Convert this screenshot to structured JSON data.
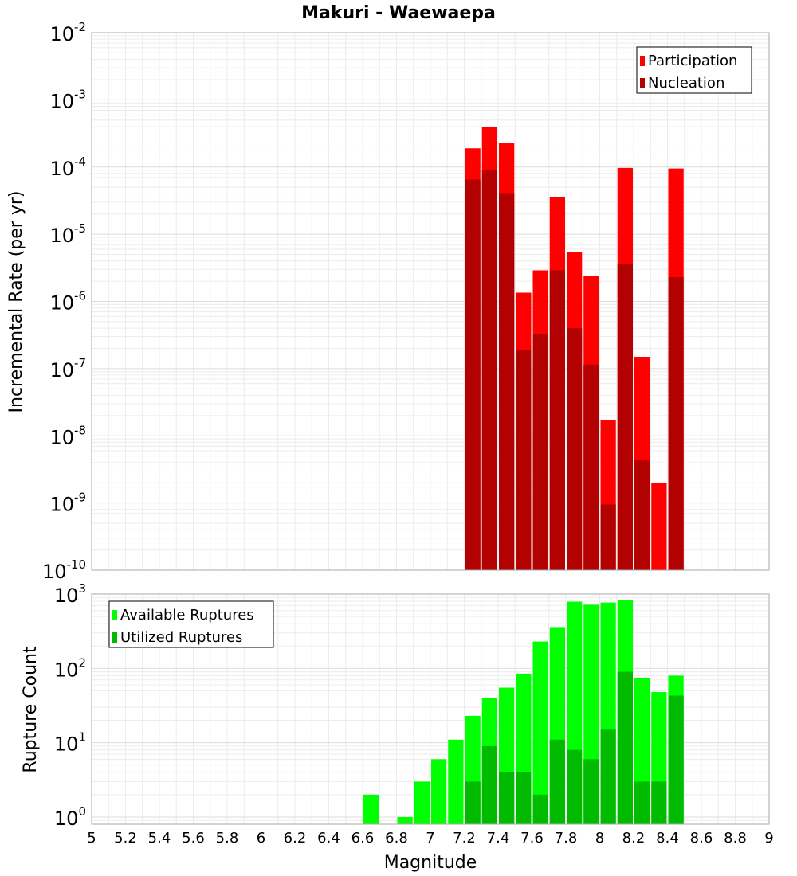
{
  "chart_data": [
    {
      "type": "bar",
      "title": "Makuri - Waewaepa",
      "xlabel": "",
      "ylabel": "Incremental Rate (per yr)",
      "yscale": "log",
      "ylim": [
        1e-10,
        0.01
      ],
      "xlim": [
        5,
        9
      ],
      "bar_width": 0.1,
      "grid": true,
      "legend_position": "top-right",
      "ytick_labels": [
        {
          "base": "10",
          "exp": "-2"
        },
        {
          "base": "10",
          "exp": "-3"
        },
        {
          "base": "10",
          "exp": "-4"
        },
        {
          "base": "10",
          "exp": "-5"
        },
        {
          "base": "10",
          "exp": "-6"
        },
        {
          "base": "10",
          "exp": "-7"
        },
        {
          "base": "10",
          "exp": "-8"
        },
        {
          "base": "10",
          "exp": "-9"
        },
        {
          "base": "10",
          "exp": "-10"
        }
      ],
      "x": [
        7.25,
        7.35,
        7.45,
        7.55,
        7.65,
        7.75,
        7.85,
        7.95,
        8.05,
        8.15,
        8.25,
        8.35,
        8.45
      ],
      "series": [
        {
          "name": "Participation",
          "color": "#ff0000",
          "values": [
            0.00019,
            0.00039,
            0.000225,
            1.35e-06,
            2.9e-06,
            3.6e-05,
            5.5e-06,
            2.4e-06,
            1.7e-08,
            9.7e-05,
            1.5e-07,
            2e-09,
            9.5e-05
          ]
        },
        {
          "name": "Nucleation",
          "color": "#b30000",
          "values": [
            6.5e-05,
            9e-05,
            4.1e-05,
            1.9e-07,
            3.3e-07,
            2.9e-06,
            4e-07,
            1.15e-07,
            9.5e-10,
            3.6e-06,
            4.3e-09,
            null,
            2.3e-06
          ]
        }
      ]
    },
    {
      "type": "bar",
      "title": "",
      "xlabel": "Magnitude",
      "ylabel": "Rupture Count",
      "yscale": "log",
      "ylim": [
        0.8,
        1000
      ],
      "xlim": [
        5,
        9
      ],
      "bar_width": 0.1,
      "grid": true,
      "legend_position": "top-left",
      "ytick_labels": [
        {
          "value": 1000,
          "base": "10",
          "exp": "3"
        },
        {
          "value": 100,
          "base": "10",
          "exp": "2"
        },
        {
          "value": 10,
          "base": "10",
          "exp": "1"
        },
        {
          "value": 1,
          "base": "10",
          "exp": "0"
        }
      ],
      "xtick_labels": [
        "5",
        "5.2",
        "5.4",
        "5.6",
        "5.8",
        "6",
        "6.2",
        "6.4",
        "6.6",
        "6.8",
        "7",
        "7.2",
        "7.4",
        "7.6",
        "7.8",
        "8",
        "8.2",
        "8.4",
        "8.6",
        "8.8",
        "9"
      ],
      "x": [
        6.65,
        6.85,
        6.95,
        7.05,
        7.15,
        7.25,
        7.35,
        7.45,
        7.55,
        7.65,
        7.75,
        7.85,
        7.95,
        8.05,
        8.15,
        8.25,
        8.35,
        8.45
      ],
      "series": [
        {
          "name": "Available Ruptures",
          "color": "#00ff00",
          "values": [
            2,
            1,
            3,
            6,
            11,
            23,
            40,
            55,
            85,
            230,
            360,
            790,
            720,
            770,
            820,
            75,
            48,
            80
          ]
        },
        {
          "name": "Utilized Ruptures",
          "color": "#00bb00",
          "values": [
            null,
            null,
            null,
            null,
            null,
            3,
            9,
            4,
            4,
            2,
            11,
            8,
            6,
            15,
            90,
            3,
            3,
            43
          ]
        }
      ]
    }
  ]
}
